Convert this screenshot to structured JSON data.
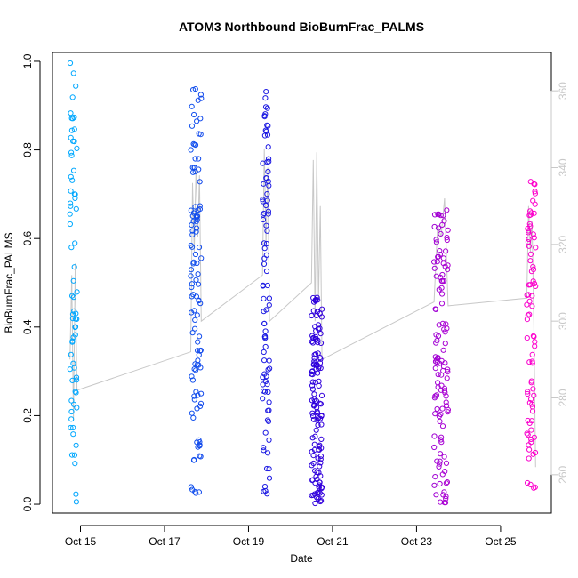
{
  "chart_data": {
    "type": "scatter",
    "title": "ATOM3 Northbound BioBurnFrac_PALMS",
    "xlabel": "Date",
    "ylabel": "BioBurnFrac_PALMS",
    "xlim": [
      "2017-10-14T08:00",
      "2017-10-26T05:00"
    ],
    "ylim": [
      -0.02,
      1.02
    ],
    "y2lim": [
      250,
      370
    ],
    "xticks": [
      {
        "date": "2017-10-15",
        "label": "Oct 15"
      },
      {
        "date": "2017-10-17",
        "label": "Oct 17"
      },
      {
        "date": "2017-10-19",
        "label": "Oct 19"
      },
      {
        "date": "2017-10-21",
        "label": "Oct 21"
      },
      {
        "date": "2017-10-23",
        "label": "Oct 23"
      },
      {
        "date": "2017-10-25",
        "label": "Oct 25"
      }
    ],
    "yticks": [
      0.0,
      0.2,
      0.4,
      0.6,
      0.8,
      1.0
    ],
    "yticklabels": [
      "0.0",
      "0.2",
      "0.4",
      "0.6",
      "0.8",
      "1.0"
    ],
    "y2ticks": [
      260,
      280,
      300,
      320,
      340,
      360
    ],
    "grid": false,
    "legend": "none",
    "colors": {
      "series_start": "#00aaff",
      "series_mid": "#2200dd",
      "series_end": "#ff00cc",
      "secondary_line": "#c8c8c8",
      "axis": "#000000",
      "right_axis": "#c8c8c8"
    },
    "flights": [
      {
        "start": "2017-10-14T18:00",
        "end": "2017-10-14T22:00",
        "ymin": 0.0,
        "ymax": 1.0,
        "n": 70
      },
      {
        "start": "2017-10-17T15:00",
        "end": "2017-10-17T21:00",
        "ymin": 0.02,
        "ymax": 0.94,
        "n": 110
      },
      {
        "start": "2017-10-19T08:00",
        "end": "2017-10-19T12:00",
        "ymin": 0.0,
        "ymax": 0.94,
        "n": 90
      },
      {
        "start": "2017-10-20T12:00",
        "end": "2017-10-20T18:00",
        "ymin": 0.0,
        "ymax": 0.47,
        "n": 130
      },
      {
        "start": "2017-10-23T10:00",
        "end": "2017-10-23T18:00",
        "ymin": 0.0,
        "ymax": 0.68,
        "n": 120
      },
      {
        "start": "2017-10-25T15:00",
        "end": "2017-10-25T20:00",
        "ymin": 0.03,
        "ymax": 0.73,
        "n": 80
      }
    ],
    "secondary_series": {
      "axis": "right",
      "points": [
        [
          "2017-10-14T18:00",
          290
        ],
        [
          "2017-10-14T19:00",
          312
        ],
        [
          "2017-10-14T20:00",
          274
        ],
        [
          "2017-10-14T21:00",
          315
        ],
        [
          "2017-10-14T22:00",
          282
        ],
        [
          "2017-10-17T15:00",
          292
        ],
        [
          "2017-10-17T16:00",
          336
        ],
        [
          "2017-10-17T17:00",
          318
        ],
        [
          "2017-10-17T18:00",
          340
        ],
        [
          "2017-10-17T19:00",
          322
        ],
        [
          "2017-10-17T20:00",
          338
        ],
        [
          "2017-10-17T21:00",
          300
        ],
        [
          "2017-10-19T08:00",
          312
        ],
        [
          "2017-10-19T09:00",
          345
        ],
        [
          "2017-10-19T10:00",
          320
        ],
        [
          "2017-10-19T11:00",
          340
        ],
        [
          "2017-10-19T12:00",
          300
        ],
        [
          "2017-10-20T12:00",
          310
        ],
        [
          "2017-10-20T13:00",
          342
        ],
        [
          "2017-10-20T14:00",
          300
        ],
        [
          "2017-10-20T15:00",
          344
        ],
        [
          "2017-10-20T16:00",
          305
        ],
        [
          "2017-10-20T17:00",
          330
        ],
        [
          "2017-10-20T18:00",
          290
        ],
        [
          "2017-10-23T10:00",
          305
        ],
        [
          "2017-10-23T12:00",
          325
        ],
        [
          "2017-10-23T14:00",
          322
        ],
        [
          "2017-10-23T16:00",
          332
        ],
        [
          "2017-10-23T18:00",
          304
        ],
        [
          "2017-10-25T15:00",
          306
        ],
        [
          "2017-10-25T16:00",
          330
        ],
        [
          "2017-10-25T17:00",
          318
        ],
        [
          "2017-10-25T18:00",
          326
        ],
        [
          "2017-10-25T19:00",
          300
        ],
        [
          "2017-10-25T20:00",
          262
        ]
      ]
    }
  }
}
